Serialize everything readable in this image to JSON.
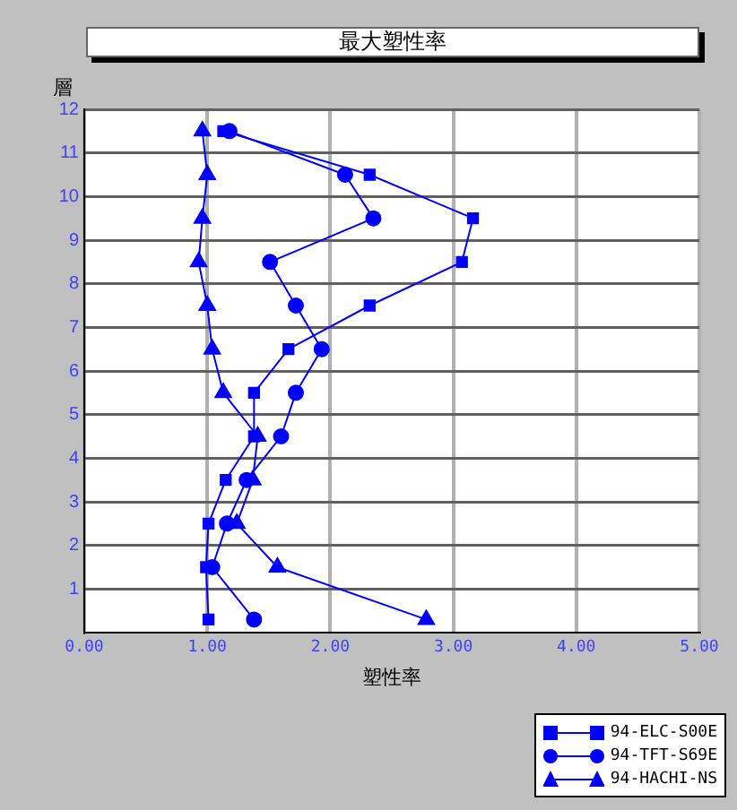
{
  "chart_data": {
    "type": "line",
    "title": "最大塑性率",
    "xlabel": "塑性率",
    "ylabel": "層",
    "xlim": [
      0,
      5
    ],
    "xticks": [
      {
        "value": 0,
        "label": "0.00"
      },
      {
        "value": 1,
        "label": "1.00"
      },
      {
        "value": 2,
        "label": "2.00"
      },
      {
        "value": 3,
        "label": "3.00"
      },
      {
        "value": 4,
        "label": "4.00"
      },
      {
        "value": 5,
        "label": "5.00"
      }
    ],
    "ylim": [
      0,
      12
    ],
    "yticks": [
      1,
      2,
      3,
      4,
      5,
      6,
      7,
      8,
      9,
      10,
      11,
      12
    ],
    "grid": true,
    "legend": "bottom right",
    "series": [
      {
        "name": "94-ELC-S00E",
        "color": "#0000ff",
        "marker": "square",
        "x": [
          1.13,
          2.32,
          3.16,
          3.07,
          2.32,
          1.66,
          1.38,
          1.38,
          1.15,
          1.01,
          0.99,
          1.01
        ],
        "values": [
          11.5,
          10.5,
          9.5,
          8.5,
          7.5,
          6.5,
          5.5,
          4.5,
          3.5,
          2.5,
          1.5,
          0.3
        ]
      },
      {
        "name": "94-TFT-S69E",
        "color": "#0000ff",
        "marker": "circle",
        "x": [
          1.18,
          2.12,
          2.35,
          1.51,
          1.72,
          1.93,
          1.72,
          1.6,
          1.32,
          1.16,
          1.04,
          1.38
        ],
        "values": [
          11.5,
          10.5,
          9.5,
          8.5,
          7.5,
          6.5,
          5.5,
          4.5,
          3.5,
          2.5,
          1.5,
          0.3
        ]
      },
      {
        "name": "94-HACHI-NS",
        "color": "#0000ff",
        "marker": "triangle",
        "x": [
          0.96,
          1.0,
          0.96,
          0.93,
          1.0,
          1.04,
          1.13,
          1.41,
          1.37,
          1.24,
          1.57,
          2.78
        ],
        "values": [
          11.5,
          10.5,
          9.5,
          8.5,
          7.5,
          6.5,
          5.5,
          4.5,
          3.5,
          2.5,
          1.5,
          0.3
        ]
      }
    ]
  }
}
